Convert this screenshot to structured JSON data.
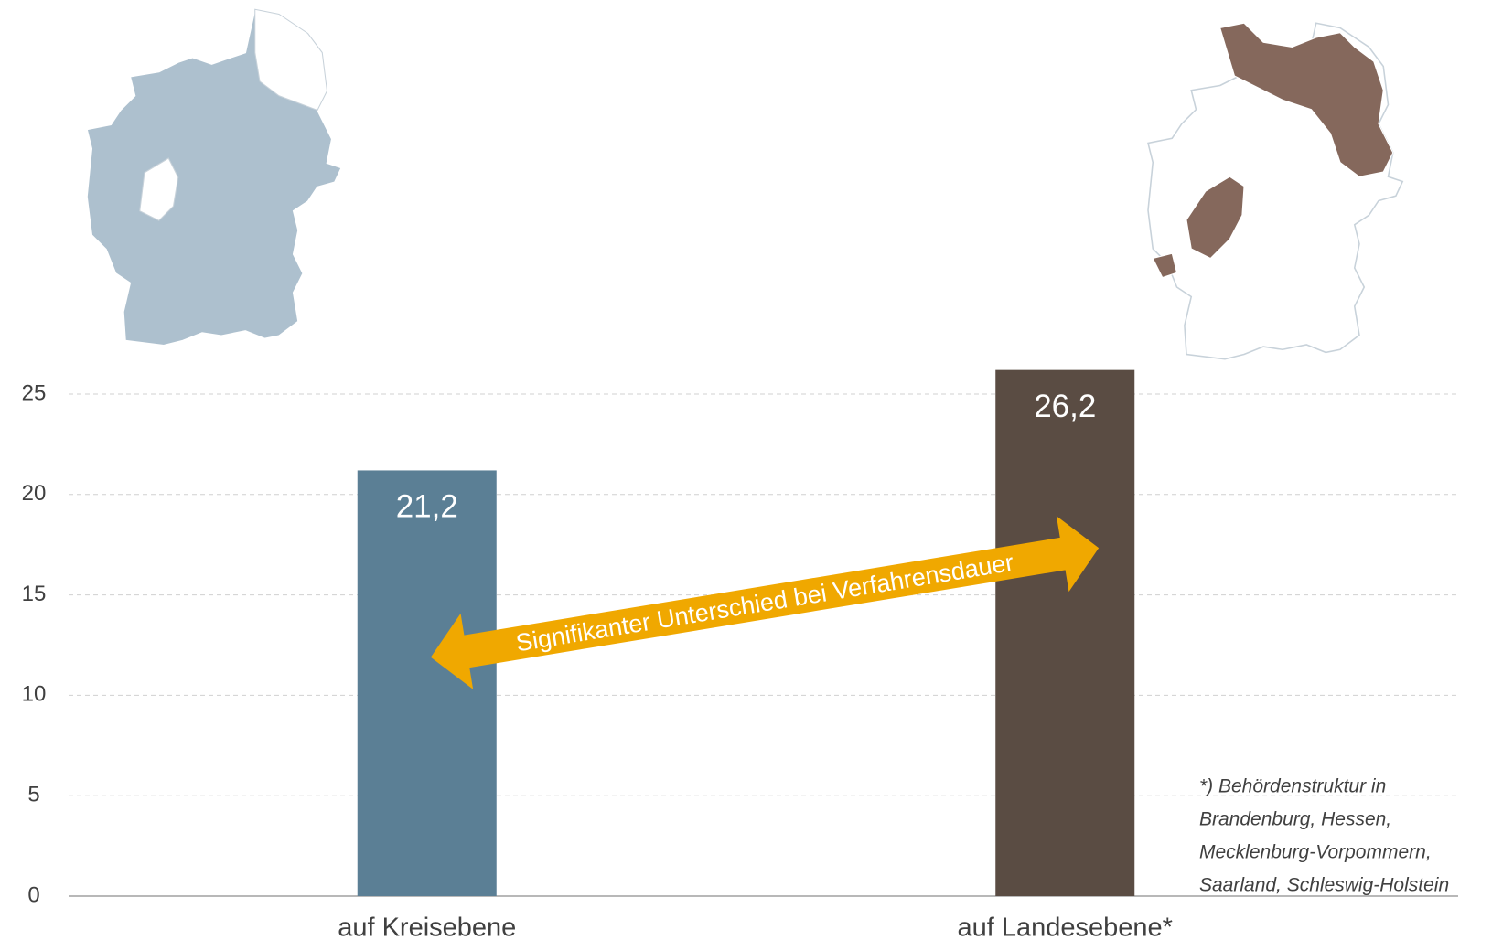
{
  "chart_data": {
    "type": "bar",
    "categories": [
      "auf Kreisebene",
      "auf Landesebene*"
    ],
    "values": [
      21.2,
      26.2
    ],
    "value_labels": [
      "21,2",
      "26,2"
    ],
    "colors": [
      "#5b7f95",
      "#5a4c43"
    ],
    "ylim": [
      0,
      27
    ],
    "yticks": [
      0,
      5,
      10,
      15,
      20,
      25
    ],
    "grid": true,
    "annotation": "Signifikanter Unterschied bei Verfahrensdauer",
    "footnote": [
      "*) Behördenstruktur in",
      "Brandenburg, Hessen,",
      "Mecklenburg-Vorpommern,",
      "Saarland, Schleswig-Holstein"
    ]
  }
}
